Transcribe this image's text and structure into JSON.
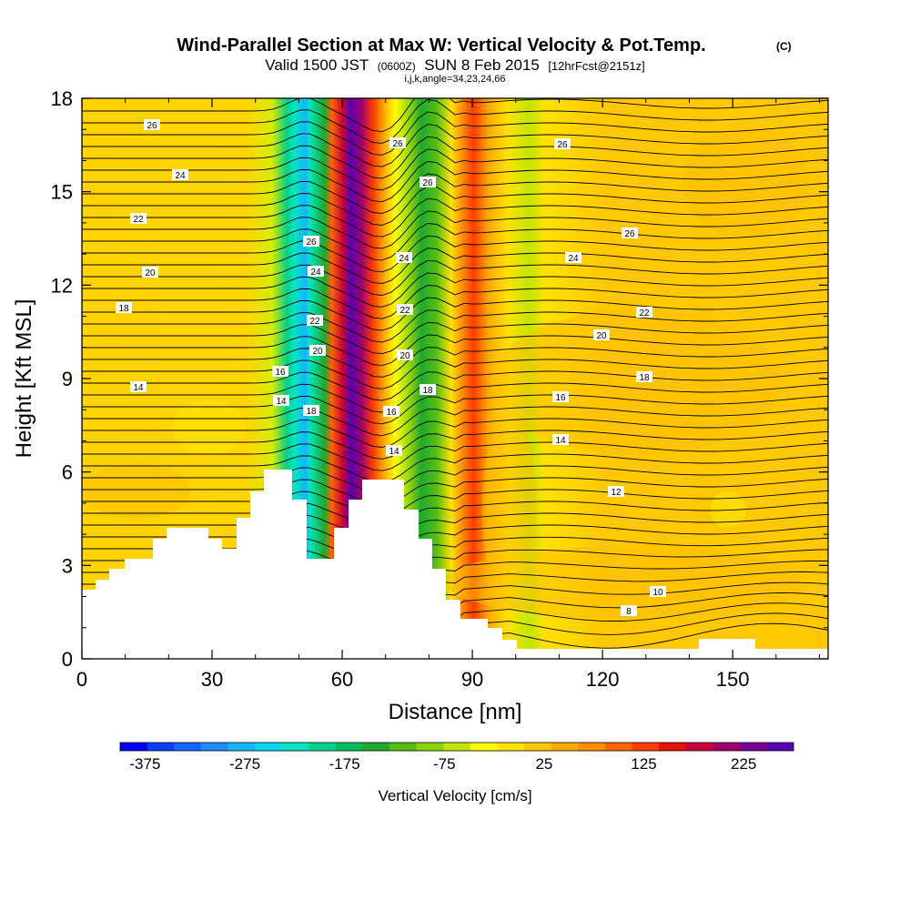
{
  "header": {
    "title": "Wind-Parallel Section at Max W: Vertical Velocity & Pot.Temp.",
    "title_mark": "(C)",
    "valid_prefix": "Valid 1500 JST",
    "valid_utc": "(0600Z)",
    "valid_date": "SUN 8 Feb 2015",
    "forecast": "[12hrFcst@2151z]",
    "indices": "i,j,k,angle=34,23,24,66"
  },
  "chart_data": {
    "type": "contour",
    "title": "Wind-Parallel Section at Max W: Vertical Velocity & Pot.Temp.",
    "xlabel": "Distance [nm]",
    "ylabel": "Height [Kft MSL]",
    "xlim": [
      0,
      172
    ],
    "ylim": [
      0,
      18
    ],
    "xticks": [
      0,
      30,
      60,
      90,
      120,
      150
    ],
    "yticks": [
      0,
      3,
      6,
      9,
      12,
      15,
      18
    ],
    "colorbar": {
      "label": "Vertical Velocity [cm/s]",
      "ticks": [
        -375,
        -275,
        -175,
        -75,
        25,
        125,
        225
      ],
      "colors": [
        "#0000ff",
        "#0a3cff",
        "#1464ff",
        "#1e8cff",
        "#14b4ff",
        "#00d7f0",
        "#00e6c3",
        "#00d28c",
        "#00be5a",
        "#1eaa2d",
        "#55be14",
        "#8cd20a",
        "#c3e600",
        "#ffff00",
        "#ffe100",
        "#ffc800",
        "#ffaa00",
        "#ff8c00",
        "#ff6400",
        "#ff3c00",
        "#e61400",
        "#c8003c",
        "#a0006e",
        "#780096",
        "#5a00b4"
      ]
    },
    "contour_lines": {
      "variable": "Potential temperature",
      "labels": [
        "8",
        "10",
        "12",
        "14",
        "14",
        "14",
        "16",
        "16",
        "16",
        "18",
        "18",
        "18",
        "20",
        "20",
        "20",
        "20",
        "22",
        "22",
        "22",
        "22",
        "24",
        "24",
        "24",
        "24",
        "26",
        "26",
        "26",
        "26",
        "26",
        "26"
      ]
    },
    "grid": false
  }
}
